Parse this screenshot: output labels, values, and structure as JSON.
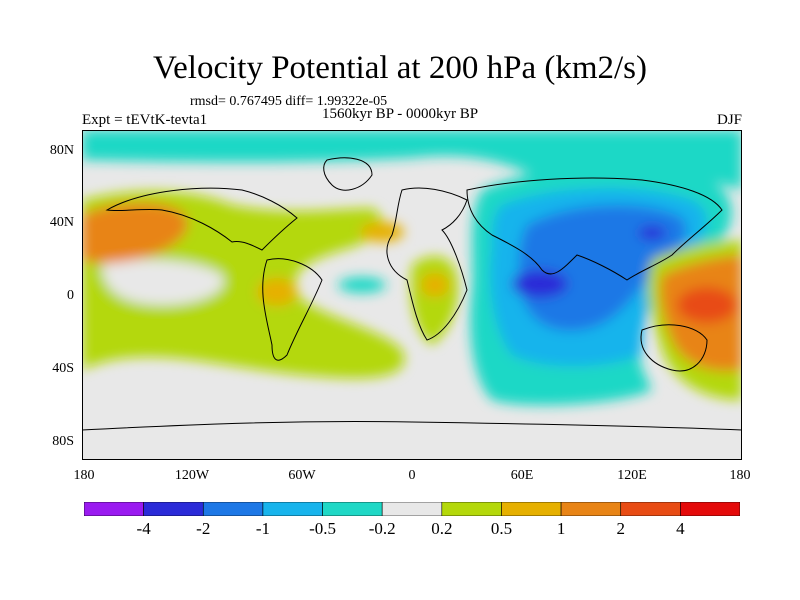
{
  "title": "Velocity Potential at 200 hPa (km2/s)",
  "stats": "rmsd= 0.767495 diff= 1.99322e-05",
  "subtitle": "1560kyr BP - 0000kyr BP",
  "experiment": "Expt = tEVtK-tevta1",
  "season": "DJF",
  "chart_data": {
    "type": "heatmap",
    "projection": "cylindrical equidistant",
    "lon_range": [
      -180,
      180
    ],
    "lat_range": [
      -90,
      90
    ],
    "lat_ticks": [
      "80N",
      "40N",
      "0",
      "40S",
      "80S"
    ],
    "lon_ticks": [
      "180",
      "120W",
      "60W",
      "0",
      "60E",
      "120E",
      "180"
    ],
    "colorbar": {
      "labels": [
        "-4",
        "-2",
        "-1",
        "-0.5",
        "-0.2",
        "0.2",
        "0.5",
        "1",
        "2",
        "4"
      ],
      "colors": [
        "#9a1bf0",
        "#2b2bd8",
        "#1e78e6",
        "#18b4ec",
        "#1fd8c6",
        "#e8e8e8",
        "#b4d80a",
        "#e6b000",
        "#e88416",
        "#e84c14",
        "#e40a0a"
      ]
    },
    "fields": [
      {
        "name": "west-pacific-positive",
        "level": "1",
        "lon": [
          -180,
          -140
        ],
        "lat": [
          10,
          40
        ]
      },
      {
        "name": "americas-positive",
        "level": "0.5",
        "lon": [
          -120,
          -20
        ],
        "lat": [
          -30,
          40
        ]
      },
      {
        "name": "africa-positive",
        "level": "1",
        "lon": [
          10,
          25
        ],
        "lat": [
          -10,
          15
        ]
      },
      {
        "name": "indian-ocean-minimum",
        "level": "-2",
        "lon": [
          40,
          80
        ],
        "lat": [
          -10,
          10
        ]
      },
      {
        "name": "asia-negative",
        "level": "-1",
        "lon": [
          30,
          120
        ],
        "lat": [
          -30,
          60
        ]
      },
      {
        "name": "japan-minimum",
        "level": "-2",
        "lon": [
          130,
          145
        ],
        "lat": [
          30,
          40
        ]
      },
      {
        "name": "west-pacific-maximum",
        "level": "4",
        "lon": [
          130,
          170
        ],
        "lat": [
          -15,
          5
        ]
      }
    ]
  }
}
